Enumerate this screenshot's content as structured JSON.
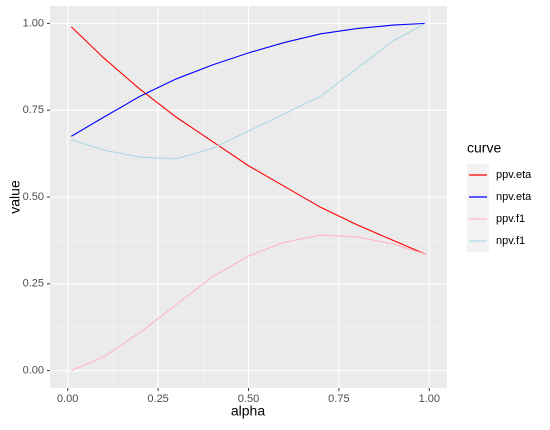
{
  "chart_data": {
    "type": "line",
    "x_label": "alpha",
    "y_label": "value",
    "x": [
      0.01,
      0.1,
      0.2,
      0.3,
      0.4,
      0.5,
      0.6,
      0.7,
      0.8,
      0.9,
      0.99
    ],
    "series": [
      {
        "name": "ppv.eta",
        "color": "#ff0000",
        "values": [
          0.99,
          0.9,
          0.81,
          0.73,
          0.66,
          0.59,
          0.53,
          0.47,
          0.42,
          0.375,
          0.335
        ]
      },
      {
        "name": "npv.eta",
        "color": "#0000ff",
        "values": [
          0.675,
          0.73,
          0.79,
          0.84,
          0.88,
          0.915,
          0.945,
          0.97,
          0.985,
          0.995,
          1.0
        ]
      },
      {
        "name": "ppv.f1",
        "color": "#ffb6c1",
        "values": [
          0.0,
          0.04,
          0.11,
          0.19,
          0.27,
          0.33,
          0.37,
          0.39,
          0.385,
          0.365,
          0.335
        ]
      },
      {
        "name": "npv.f1",
        "color": "#add8e6",
        "values": [
          0.665,
          0.635,
          0.615,
          0.61,
          0.64,
          0.69,
          0.74,
          0.79,
          0.87,
          0.95,
          1.0
        ]
      }
    ],
    "legend_title": "curve",
    "xlim": [
      -0.049,
      1.049
    ],
    "ylim": [
      -0.05,
      1.05
    ],
    "xticks": [
      {
        "value": 0,
        "label": "0.00"
      },
      {
        "value": 0.25,
        "label": "0.25"
      },
      {
        "value": 0.5,
        "label": "0.50"
      },
      {
        "value": 0.75,
        "label": "0.75"
      },
      {
        "value": 1,
        "label": "1.00"
      }
    ],
    "yticks": [
      {
        "value": 0,
        "label": "0.00"
      },
      {
        "value": 0.25,
        "label": "0.25"
      },
      {
        "value": 0.5,
        "label": "0.50"
      },
      {
        "value": 0.75,
        "label": "0.75"
      },
      {
        "value": 1,
        "label": "1.00"
      }
    ],
    "grid": true,
    "legend": "right"
  }
}
